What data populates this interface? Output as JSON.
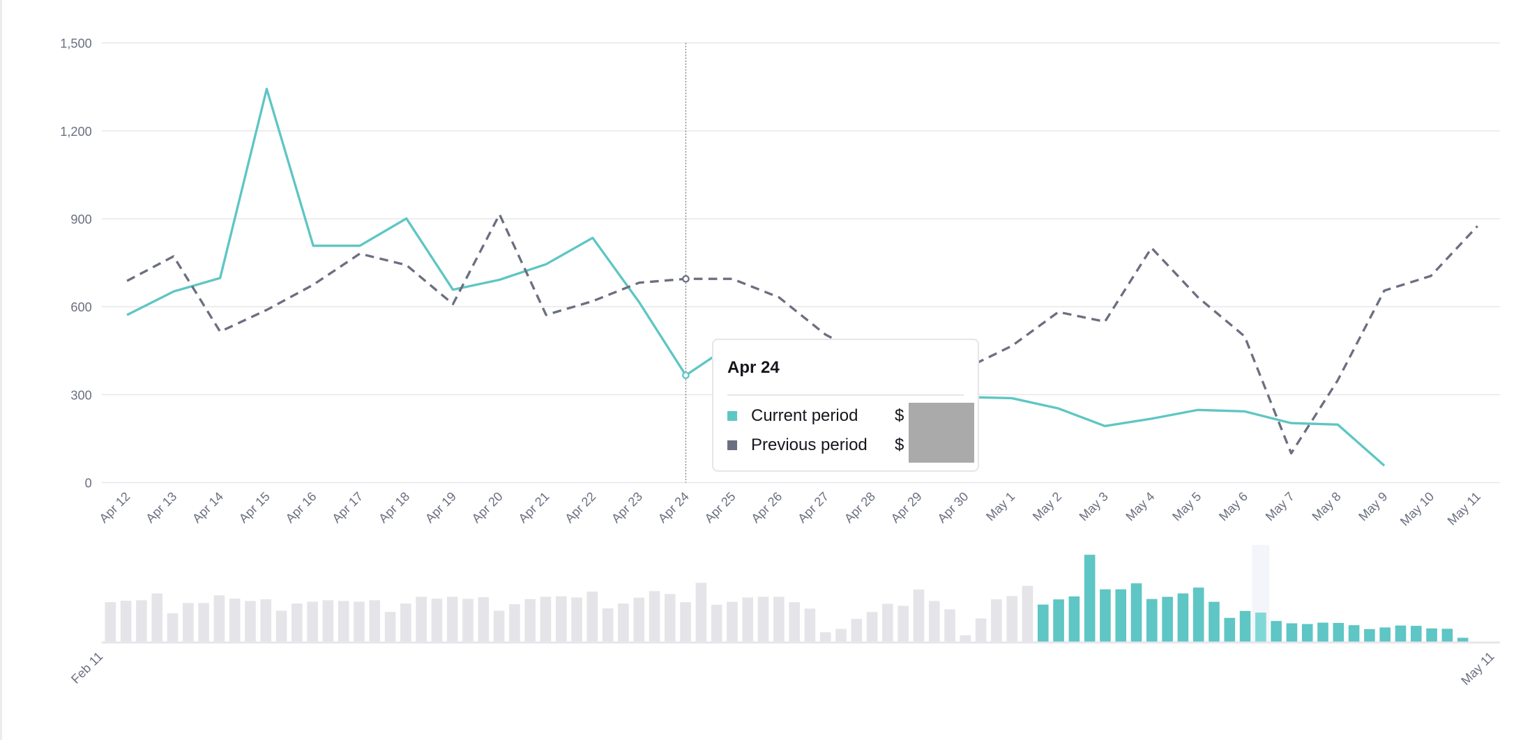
{
  "colors": {
    "current": "#5ec6c4",
    "previous": "#6b6f80",
    "grid": "#e6e6ea",
    "brush_inactive": "#e5e5e9",
    "highlight": "#f4f5fa"
  },
  "chart_data": [
    {
      "type": "line",
      "ylim": [
        0,
        1500
      ],
      "yticks": [
        "0",
        "300",
        "600",
        "900",
        "1,200",
        "1,500"
      ],
      "ytick_values": [
        0,
        300,
        600,
        900,
        1200,
        1500
      ],
      "grid": true,
      "categories": [
        "Apr 12",
        "Apr 13",
        "Apr 14",
        "Apr 15",
        "Apr 16",
        "Apr 17",
        "Apr 18",
        "Apr 19",
        "Apr 20",
        "Apr 21",
        "Apr 22",
        "Apr 23",
        "Apr 24",
        "Apr 25",
        "Apr 26",
        "Apr 27",
        "Apr 28",
        "Apr 29",
        "Apr 30",
        "May 1",
        "May 2",
        "May 3",
        "May 4",
        "May 5",
        "May 6",
        "May 7",
        "May 8",
        "May 9",
        "May 10",
        "May 11"
      ],
      "series": [
        {
          "key": "current",
          "style": "solid",
          "values": [
            572,
            652,
            698,
            1343,
            808,
            808,
            901,
            658,
            692,
            745,
            835,
            615,
            366,
            473,
            448,
            318,
            282,
            271,
            292,
            288,
            253,
            193,
            218,
            248,
            243,
            203,
            198,
            58,
            null,
            null
          ]
        },
        {
          "key": "previous",
          "style": "dashed",
          "values": [
            688,
            772,
            515,
            589,
            675,
            781,
            742,
            609,
            915,
            572,
            619,
            682,
            695,
            695,
            632,
            505,
            420,
            380,
            389,
            466,
            582,
            549,
            801,
            632,
            499,
            100,
            349,
            655,
            705,
            875
          ]
        }
      ],
      "hover": {
        "category": "Apr 24"
      }
    },
    {
      "type": "bar",
      "role": "range-brush",
      "xtick_labels": [
        "Feb 11",
        "May 11"
      ],
      "previous_values": [
        610,
        632,
        639,
        744,
        437,
        596,
        596,
        715,
        664,
        628,
        653,
        477,
        588,
        617,
        639,
        628,
        617,
        639,
        458,
        588,
        693,
        664,
        693,
        661,
        686,
        477,
        578,
        657,
        693,
        700,
        682,
        773,
        513,
        588,
        679,
        780,
        736,
        610,
        910,
        570,
        614,
        682,
        693,
        693,
        610,
        509,
        144,
        195,
        350,
        458,
        585,
        552,
        805,
        628,
        498,
        97,
        357,
        653,
        704,
        863
      ],
      "current_values": [
        572,
        652,
        698,
        1343,
        808,
        808,
        901,
        658,
        692,
        745,
        835,
        615,
        366,
        473,
        448,
        318,
        282,
        271,
        292,
        288,
        253,
        193,
        218,
        248,
        243,
        203,
        198,
        58
      ],
      "highlighted_index": 74
    }
  ],
  "tooltip": {
    "title": "Apr 24",
    "rows": [
      {
        "label": "Current period",
        "value": "$"
      },
      {
        "label": "Previous period",
        "value": "$"
      }
    ]
  }
}
